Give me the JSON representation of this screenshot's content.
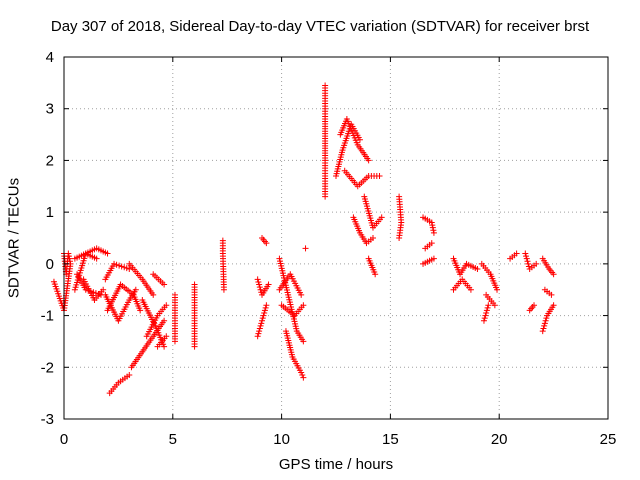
{
  "chart_data": {
    "type": "scatter",
    "title": "Day 307 of 2018, Sidereal Day-to-day VTEC variation (SDTVAR) for receiver brst",
    "xlabel": "GPS time / hours",
    "ylabel": "SDTVAR / TECUs",
    "xlim": [
      0,
      25
    ],
    "ylim": [
      -3,
      4
    ],
    "xticks": [
      0,
      5,
      10,
      15,
      20,
      25
    ],
    "yticks": [
      -3,
      -2,
      -1,
      0,
      1,
      2,
      3,
      4
    ],
    "grid": true,
    "marker": "+",
    "color": "#ff0000",
    "segments": [
      [
        0.0,
        0.2,
        0.1,
        -0.2,
        0.2,
        0.2,
        0.3,
        0.0,
        0.0,
        -0.9,
        -0.5,
        -0.3,
        0.0
      ],
      [
        0.5,
        0.1,
        1.5,
        0.3,
        2.0,
        0.2
      ],
      [
        0.5,
        -0.5,
        1.0,
        0.2,
        1.5,
        0.1
      ],
      [
        0.6,
        -0.2,
        1.0,
        -0.5,
        1.7,
        -0.6
      ],
      [
        0.9,
        -0.3,
        1.4,
        -0.7,
        1.8,
        -0.5
      ],
      [
        1.9,
        -0.3,
        2.3,
        0.0,
        3.0,
        -0.1
      ],
      [
        1.9,
        -0.6,
        2.5,
        -1.1,
        3.0,
        -0.7,
        3.3,
        -0.5
      ],
      [
        2.0,
        -0.9,
        2.6,
        -0.4,
        3.2,
        -0.6,
        3.5,
        -0.9
      ],
      [
        2.1,
        -2.5,
        2.5,
        -2.3,
        3.0,
        -2.15
      ],
      [
        3.1,
        -2.0,
        3.6,
        -1.7,
        4.1,
        -1.4,
        4.6,
        -1.1
      ],
      [
        3.0,
        0.0,
        3.6,
        -0.3,
        4.1,
        -0.6
      ],
      [
        3.6,
        -0.7,
        4.2,
        -1.2,
        4.6,
        -1.6
      ],
      [
        3.8,
        -1.4,
        4.3,
        -1.0,
        4.7,
        -0.8
      ],
      [
        4.3,
        -1.6,
        4.7,
        -1.4
      ],
      [
        4.1,
        -0.2,
        4.6,
        -0.4
      ],
      [
        5.1,
        -0.6,
        5.1,
        -0.9,
        5.1,
        -1.5
      ],
      [
        6.0,
        -0.4,
        6.0,
        -0.9,
        6.0,
        -1.3,
        6.0,
        -1.6
      ],
      [
        7.3,
        0.45,
        7.3,
        0.2,
        7.35,
        -0.5
      ],
      [
        8.9,
        -0.3,
        9.1,
        -0.6,
        9.4,
        -0.4
      ],
      [
        8.9,
        -1.4,
        9.1,
        -1.1,
        9.3,
        -0.8
      ],
      [
        9.1,
        0.5,
        9.3,
        0.4
      ],
      [
        9.9,
        0.1,
        10.3,
        -0.6,
        10.7,
        -1.3,
        11.0,
        -1.5
      ],
      [
        9.9,
        -0.5,
        10.4,
        -0.2,
        10.9,
        -0.6
      ],
      [
        10.2,
        -1.3,
        10.5,
        -1.8,
        10.9,
        -2.1,
        11.0,
        -2.2
      ],
      [
        10.0,
        -0.8,
        10.6,
        -1.0,
        11.0,
        -0.8
      ],
      [
        11.1,
        0.3
      ],
      [
        12.0,
        3.45,
        12.0,
        2.8,
        12.0,
        2.0,
        12.0,
        1.3
      ],
      [
        12.5,
        1.7,
        12.8,
        2.2,
        13.2,
        2.7,
        13.6,
        2.4
      ],
      [
        12.7,
        2.5,
        13.0,
        2.8,
        13.5,
        2.3,
        14.0,
        2.0
      ],
      [
        12.9,
        1.8,
        13.5,
        1.5,
        14.0,
        1.7,
        14.5,
        1.7
      ],
      [
        13.3,
        0.9,
        13.6,
        0.6,
        13.9,
        0.4,
        14.2,
        0.5
      ],
      [
        13.8,
        1.3,
        14.2,
        0.7,
        14.6,
        0.9
      ],
      [
        14.0,
        0.1,
        14.3,
        -0.2
      ],
      [
        15.4,
        1.3,
        15.5,
        0.8,
        15.4,
        0.5
      ],
      [
        16.5,
        0.9,
        16.9,
        0.8,
        17.0,
        0.6
      ],
      [
        16.6,
        0.3,
        16.9,
        0.4
      ],
      [
        16.5,
        0.0,
        17.0,
        0.1
      ],
      [
        17.9,
        0.1,
        18.2,
        -0.2,
        18.5,
        0.0,
        19.0,
        -0.1
      ],
      [
        17.9,
        -0.5,
        18.3,
        -0.3,
        18.7,
        -0.5
      ],
      [
        19.3,
        -1.1,
        19.5,
        -0.8
      ],
      [
        19.2,
        0.0,
        19.6,
        -0.2,
        19.9,
        -0.5
      ],
      [
        19.4,
        -0.6,
        19.8,
        -0.8
      ],
      [
        20.5,
        0.1,
        20.8,
        0.2
      ],
      [
        21.2,
        0.2,
        21.4,
        -0.1,
        21.7,
        0.0
      ],
      [
        21.4,
        -0.9,
        21.6,
        -0.8
      ],
      [
        22.0,
        0.1,
        22.3,
        -0.1,
        22.5,
        -0.2
      ],
      [
        22.0,
        -1.3,
        22.2,
        -1.0,
        22.5,
        -0.8
      ],
      [
        22.1,
        -0.5,
        22.4,
        -0.6
      ]
    ]
  }
}
